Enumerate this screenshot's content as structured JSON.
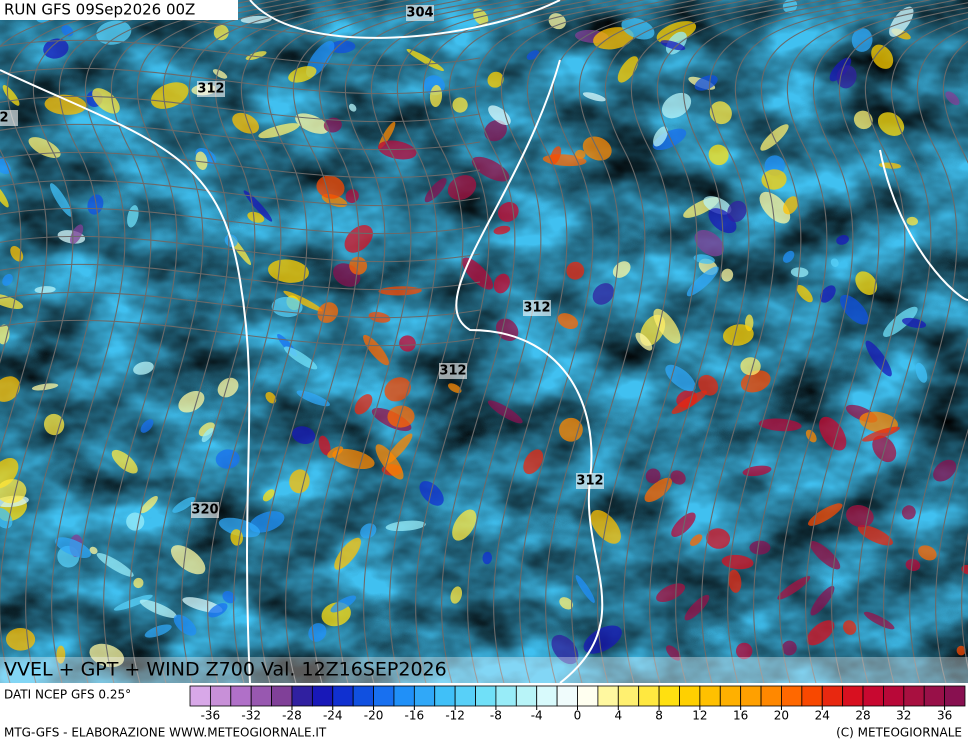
{
  "header": {
    "run": "RUN GFS 09Sep2026 00Z"
  },
  "contour_labels": [
    "304",
    "312",
    "2",
    "312",
    "312",
    "312",
    "320"
  ],
  "map_title": "VVEL + GPT + WIND Z700 Val. 12Z16SEP2026",
  "source": "DATI NCEP GFS 0.25°",
  "colorbar": {
    "lim": [
      -38,
      38
    ],
    "ticks": [
      -36,
      -32,
      -28,
      -24,
      -20,
      -16,
      -12,
      -8,
      -4,
      0,
      4,
      8,
      12,
      16,
      20,
      24,
      28,
      32,
      36
    ],
    "colors": [
      "#d8a8e8",
      "#c890d8",
      "#b070c8",
      "#9858b0",
      "#804098",
      "#3020a0",
      "#1818b8",
      "#1030d0",
      "#1050e0",
      "#1870f0",
      "#2090f8",
      "#30a8f8",
      "#40c0f8",
      "#58d0f8",
      "#70e0f8",
      "#98ecf8",
      "#b8f4f8",
      "#d8fafc",
      "#f0fcfc",
      "#fffff0",
      "#fff8a0",
      "#fff070",
      "#ffe840",
      "#ffe010",
      "#ffd000",
      "#ffc000",
      "#ffb000",
      "#ffa000",
      "#ff8800",
      "#ff6800",
      "#f84800",
      "#e82810",
      "#d81020",
      "#c80830",
      "#b80838",
      "#a81040",
      "#981048",
      "#881050"
    ]
  },
  "footer": {
    "left": "MTG-GFS - ELABORAZIONE WWW.METEOGIORNALE.IT",
    "right": "(C) METEOGIORNALE"
  }
}
